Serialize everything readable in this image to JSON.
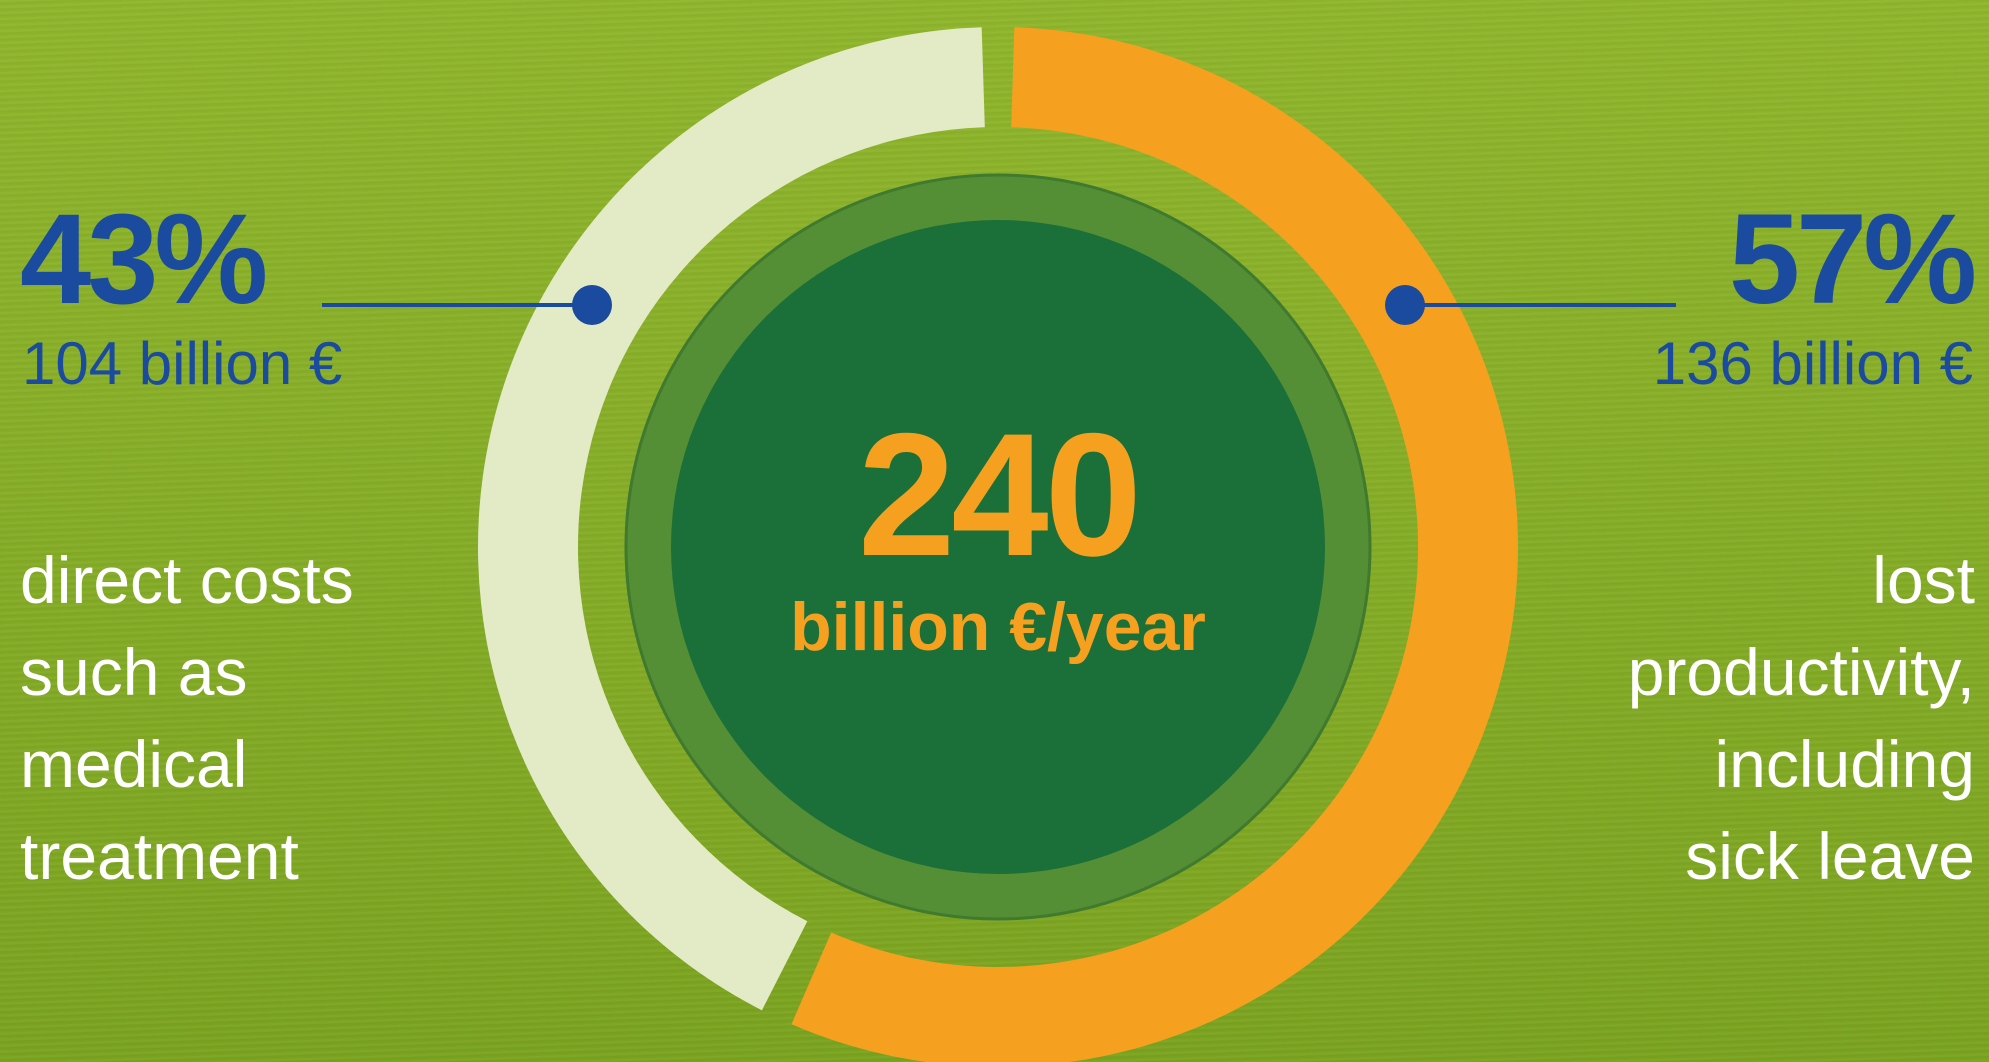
{
  "chart_data": {
    "type": "donut",
    "total": {
      "value": "240",
      "unit": "billion €/year"
    },
    "series": [
      {
        "percent": 43,
        "percent_label": "43%",
        "amount": 104,
        "amount_label": "104 billion €",
        "description": [
          "direct costs",
          "such as",
          "medical",
          "treatment"
        ],
        "color": "#e3ebc6"
      },
      {
        "percent": 57,
        "percent_label": "57%",
        "amount": 136,
        "amount_label": "136 billion €",
        "description": [
          "lost",
          "productivity,",
          "including",
          "sick leave"
        ],
        "color": "#f5a11f"
      }
    ]
  },
  "colors": {
    "background": "#86ad27",
    "label_blue": "#1b4b9e",
    "center_outer": "#548f36",
    "center_inner": "#1b6f38",
    "center_text": "#f5a11f",
    "description_text": "#ffffff"
  }
}
